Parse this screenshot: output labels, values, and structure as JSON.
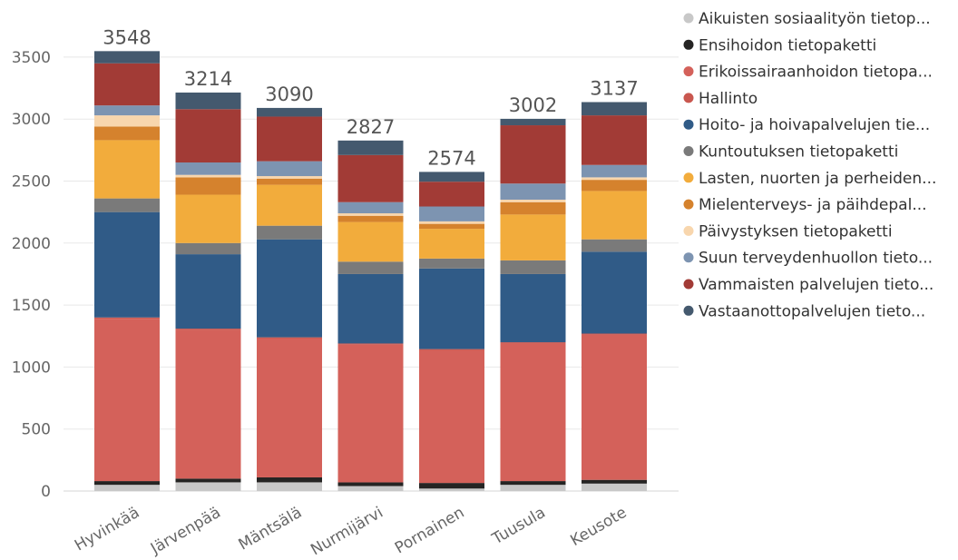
{
  "chart_data": {
    "type": "bar",
    "stacked": true,
    "categories": [
      "Hyvinkää",
      "Järvenpää",
      "Mäntsälä",
      "Nurmijärvi",
      "Pornainen",
      "Tuusula",
      "Keusote"
    ],
    "totals": [
      "3548",
      "3214",
      "3090",
      "2827",
      "2574",
      "3002",
      "3137"
    ],
    "ylim": [
      0,
      3600
    ],
    "yticks": [
      0,
      500,
      1000,
      1500,
      2000,
      2500,
      3000,
      3500
    ],
    "grid": true,
    "legend_position": "right",
    "series": [
      {
        "name": "Aikuisten sosiaalityön tietop...",
        "color": "#c8c8c8",
        "values": [
          50,
          70,
          70,
          40,
          20,
          50,
          60
        ]
      },
      {
        "name": "Ensihoidon tietopaketti",
        "color": "#252423",
        "values": [
          30,
          30,
          40,
          30,
          45,
          30,
          30
        ]
      },
      {
        "name": "Erikoissairaanhoidon tietopa...",
        "color": "#d4615a",
        "values": [
          1310,
          1200,
          1120,
          1110,
          1070,
          1110,
          1170
        ]
      },
      {
        "name": "Hallinto",
        "color": "#c9574f",
        "values": [
          10,
          10,
          10,
          10,
          10,
          10,
          10
        ]
      },
      {
        "name": "Hoito- ja hoivapalvelujen tie...",
        "color": "#305b87",
        "values": [
          850,
          600,
          790,
          560,
          650,
          550,
          660
        ]
      },
      {
        "name": "Kuntoutuksen tietopaketti",
        "color": "#7a7a7a",
        "values": [
          110,
          90,
          110,
          100,
          80,
          110,
          100
        ]
      },
      {
        "name": "Lasten, nuorten ja perheiden...",
        "color": "#f2ac3c",
        "values": [
          470,
          390,
          330,
          320,
          240,
          370,
          390
        ]
      },
      {
        "name": "Mielenterveys- ja päihdepal...",
        "color": "#d5822d",
        "values": [
          110,
          140,
          50,
          50,
          40,
          100,
          90
        ]
      },
      {
        "name": "Päivystyksen tietopaketti",
        "color": "#f8d6ad",
        "values": [
          90,
          20,
          20,
          20,
          20,
          20,
          20
        ]
      },
      {
        "name": "Suun terveydenhuollon tieto...",
        "color": "#7d94b1",
        "values": [
          80,
          100,
          120,
          90,
          120,
          130,
          100
        ]
      },
      {
        "name": "Vammaisten palvelujen tieto...",
        "color": "#a23b36",
        "values": [
          340,
          430,
          360,
          380,
          200,
          470,
          400
        ]
      },
      {
        "name": "Vastaanottopalvelujen tieto...",
        "color": "#44596e",
        "values": [
          98,
          134,
          70,
          117,
          79,
          52,
          107
        ]
      }
    ]
  }
}
